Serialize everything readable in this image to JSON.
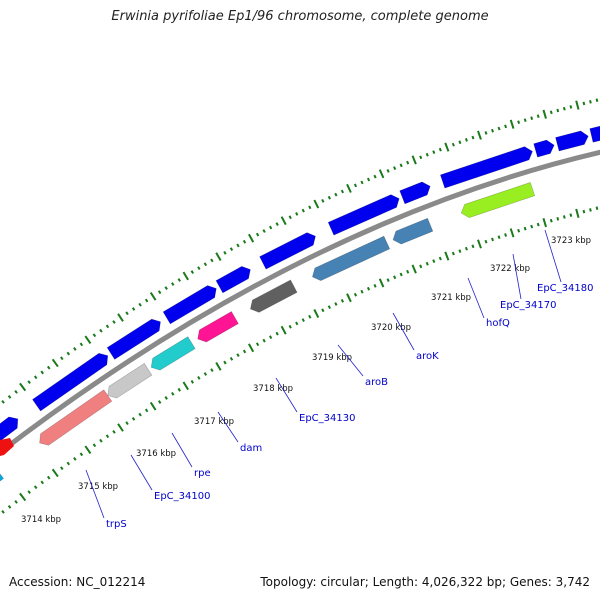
{
  "title": "Erwinia pyrifoliae Ep1/96 chromosome, complete genome",
  "footer": {
    "accession": "Accession: NC_012214",
    "topology": "Topology: circular; Length: 4,026,322 bp; Genes: 3,742"
  },
  "scale_labels": [
    "3714 kbp",
    "3715 kbp",
    "3716 kbp",
    "3717 kbp",
    "3718 kbp",
    "3719 kbp",
    "3720 kbp",
    "3721 kbp",
    "3722 kbp",
    "3723 kbp"
  ],
  "gene_labels": [
    "trpS",
    "EpC_34100",
    "rpe",
    "dam",
    "EpC_34130",
    "aroB",
    "aroK",
    "hofQ",
    "EpC_34170",
    "EpC_34180"
  ],
  "colors": {
    "forward_genes": "#0000ee",
    "backbone": "#888888",
    "ticks": "#1a7a1a",
    "label_text": "#0000cc",
    "leader_line": "#2222cc"
  },
  "reverse_gene_colors": [
    "#00aadd",
    "#f08080",
    "#c8c8c8",
    "#22cccc",
    "#ff1493",
    "#606060",
    "#4682b4",
    "#4682b4",
    "#99ee22"
  ]
}
